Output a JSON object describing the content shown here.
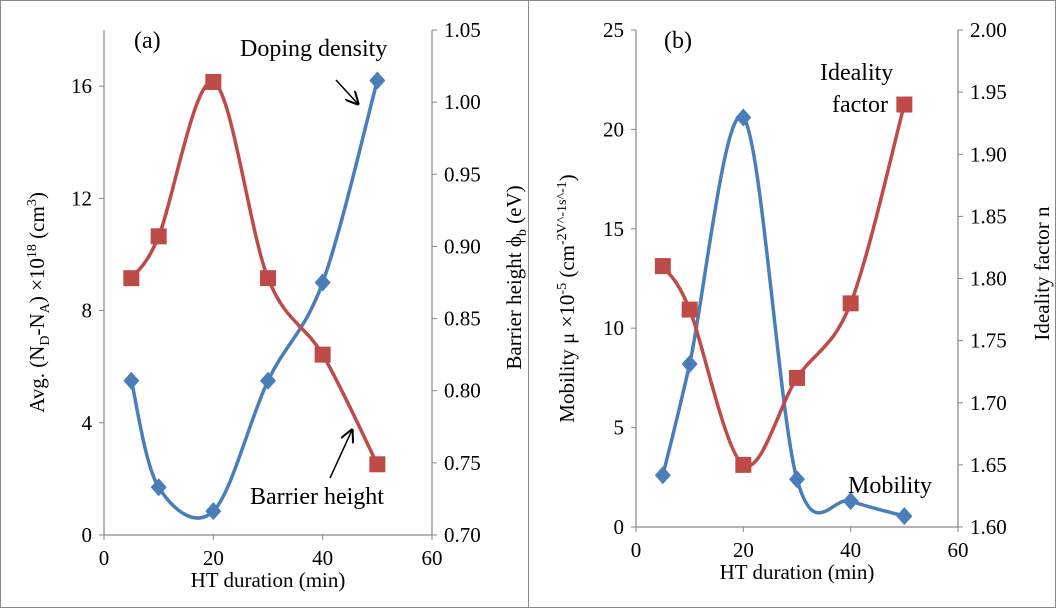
{
  "chart_data": [
    {
      "type": "line",
      "panel_label": "(a)",
      "xlabel": "HT duration (min)",
      "ylabel_left": "Avg. (N_D-N_A) ×10^18 (cm^3)",
      "ylabel_right": "Barrier height ϕ_b (eV)",
      "xlim": [
        0,
        60
      ],
      "xticks": [
        "0",
        "20",
        "40",
        "60"
      ],
      "ylim_left": [
        0,
        18
      ],
      "yticks_left": [
        "0",
        "4",
        "8",
        "12",
        "16"
      ],
      "ylim_right": [
        0.7,
        1.05
      ],
      "yticks_right": [
        "0.70",
        "0.75",
        "0.80",
        "0.85",
        "0.90",
        "0.95",
        "1.00",
        "1.05"
      ],
      "series": [
        {
          "name": "Doping density",
          "axis": "left",
          "color": "#4a7ebb",
          "marker": "diamond",
          "x": [
            5,
            10,
            20,
            30,
            40,
            50
          ],
          "values": [
            5.5,
            1.7,
            0.85,
            5.5,
            9.0,
            16.2
          ]
        },
        {
          "name": "Barrier height",
          "axis": "right",
          "color": "#be4b48",
          "marker": "square",
          "x": [
            5,
            10,
            20,
            30,
            40,
            50
          ],
          "values": [
            0.878,
            0.907,
            1.014,
            0.878,
            0.825,
            0.749
          ]
        }
      ]
    },
    {
      "type": "line",
      "panel_label": "(b)",
      "xlabel": "HT duration (min)",
      "ylabel_left": "Mobility μ ×10^-5 (cm^-2V^-1s^-1)",
      "ylabel_right": "Ideality factor  n",
      "xlim": [
        0,
        60
      ],
      "xticks": [
        "0",
        "20",
        "40",
        "60"
      ],
      "ylim_left": [
        0,
        25
      ],
      "yticks_left": [
        "0",
        "5",
        "10",
        "15",
        "20",
        "25"
      ],
      "ylim_right": [
        1.6,
        2.0
      ],
      "yticks_right": [
        "1.60",
        "1.65",
        "1.70",
        "1.75",
        "1.80",
        "1.85",
        "1.90",
        "1.95",
        "2.00"
      ],
      "series": [
        {
          "name": "Mobility",
          "axis": "left",
          "color": "#4a7ebb",
          "marker": "diamond",
          "x": [
            5,
            10,
            20,
            30,
            40,
            50
          ],
          "values": [
            2.6,
            8.2,
            20.6,
            2.4,
            1.3,
            0.55
          ]
        },
        {
          "name": "Ideality factor",
          "axis": "right",
          "color": "#be4b48",
          "marker": "square",
          "x": [
            5,
            10,
            20,
            30,
            40,
            50
          ],
          "values": [
            1.81,
            1.775,
            1.65,
            1.72,
            1.78,
            1.94
          ]
        }
      ]
    }
  ],
  "annotations": {
    "a_doping": "Doping density",
    "a_barrier": "Barrier height",
    "b_ideality_line1": "Ideality",
    "b_ideality_line2": "factor",
    "b_mobility": "Mobility"
  }
}
